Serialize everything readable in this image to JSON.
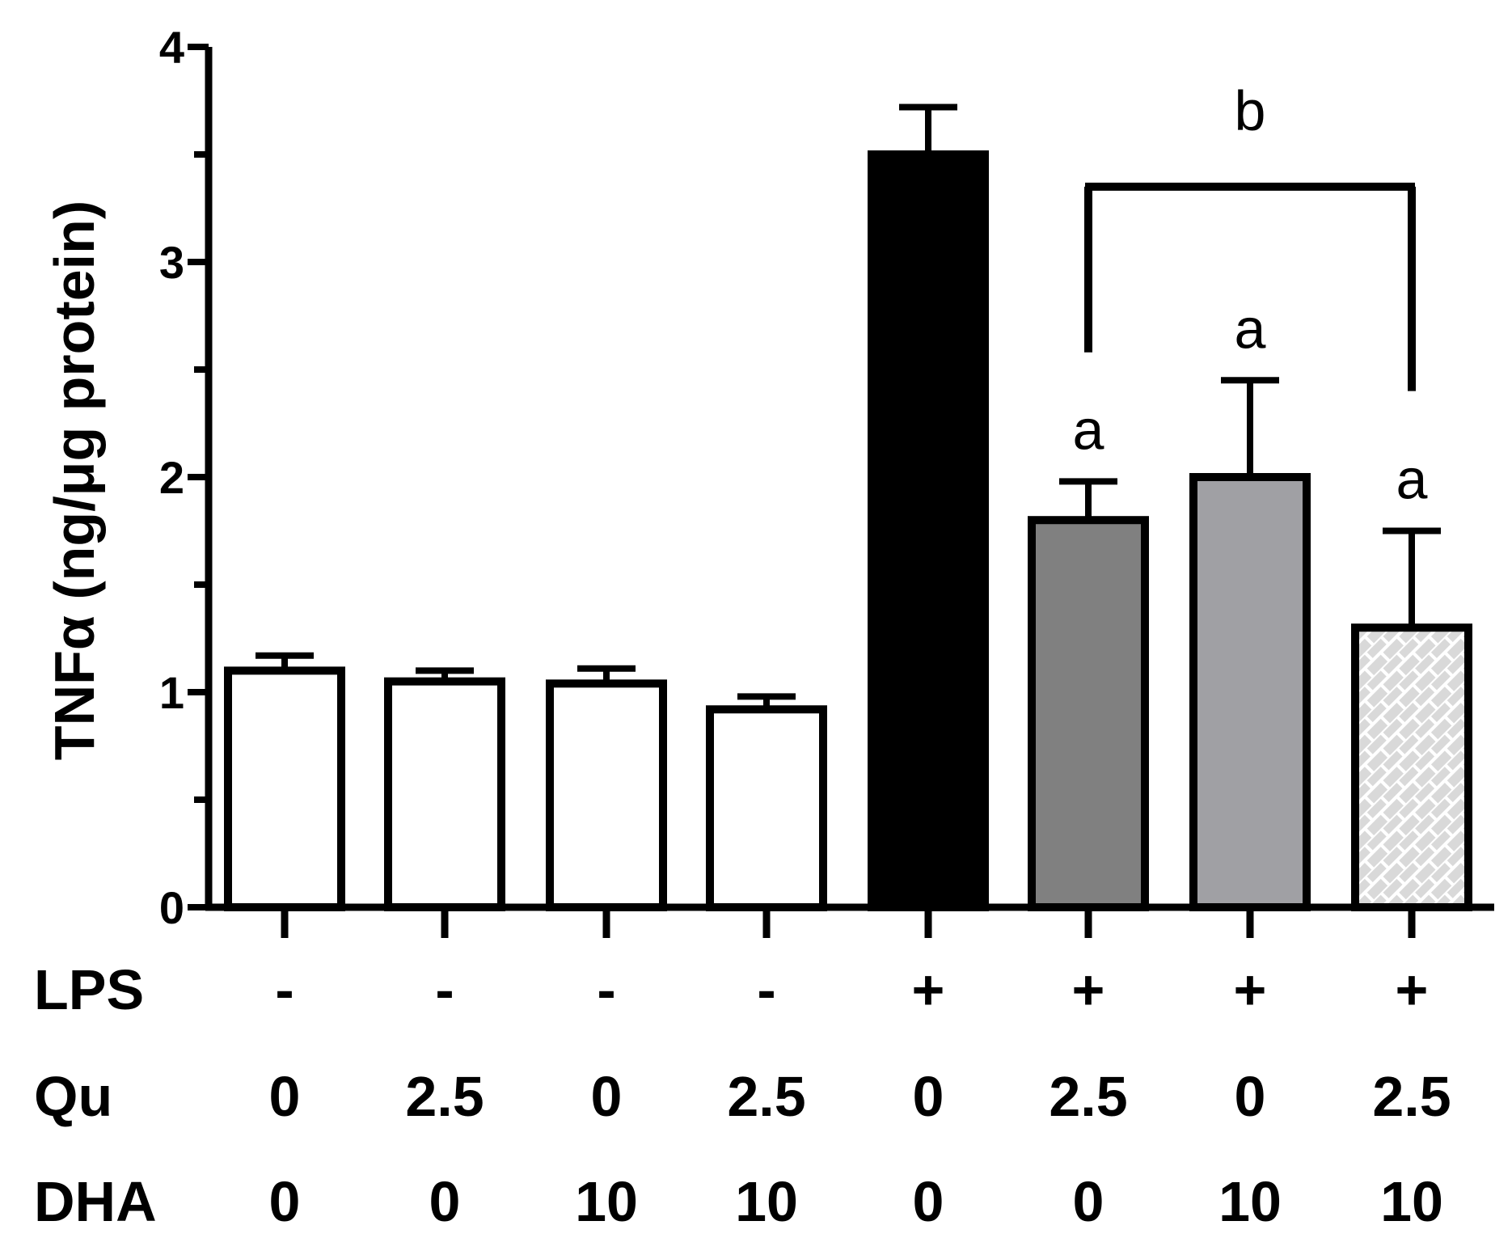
{
  "chart_data": {
    "type": "bar",
    "title": "",
    "ylabel": "TNFα (ng/μg protein)",
    "xlabel": "",
    "ylim": [
      0,
      4
    ],
    "y_ticks": [
      0,
      1,
      2,
      3,
      4
    ],
    "y_tick_labels": [
      "0",
      "1",
      "2",
      "3",
      "4"
    ],
    "bars": [
      {
        "value": 1.1,
        "error": 0.07,
        "color": "#ffffff",
        "pattern": false,
        "sig": ""
      },
      {
        "value": 1.05,
        "error": 0.05,
        "color": "#ffffff",
        "pattern": false,
        "sig": ""
      },
      {
        "value": 1.04,
        "error": 0.07,
        "color": "#ffffff",
        "pattern": false,
        "sig": ""
      },
      {
        "value": 0.92,
        "error": 0.06,
        "color": "#ffffff",
        "pattern": false,
        "sig": ""
      },
      {
        "value": 3.5,
        "error": 0.22,
        "color": "#000000",
        "pattern": false,
        "sig": ""
      },
      {
        "value": 1.8,
        "error": 0.18,
        "color": "#808080",
        "pattern": false,
        "sig": "a"
      },
      {
        "value": 2.0,
        "error": 0.45,
        "color": "#a0a0a4",
        "pattern": false,
        "sig": "a"
      },
      {
        "value": 1.3,
        "error": 0.45,
        "color": "#d9d9d9",
        "pattern": true,
        "sig": "a"
      }
    ],
    "conditions": [
      {
        "label": "LPS",
        "values": [
          "-",
          "-",
          "-",
          "-",
          "+",
          "+",
          "+",
          "+"
        ]
      },
      {
        "label": "Qu",
        "values": [
          "0",
          "2.5",
          "0",
          "2.5",
          "0",
          "2.5",
          "0",
          "2.5"
        ]
      },
      {
        "label": "DHA",
        "values": [
          "0",
          "0",
          "10",
          "10",
          "0",
          "0",
          "10",
          "10"
        ]
      }
    ],
    "bracket": {
      "label": "b",
      "from_bar": 5,
      "to_bar": 7,
      "level": 3.35,
      "left_drop_to": 2.58,
      "right_drop_to": 2.4
    }
  }
}
